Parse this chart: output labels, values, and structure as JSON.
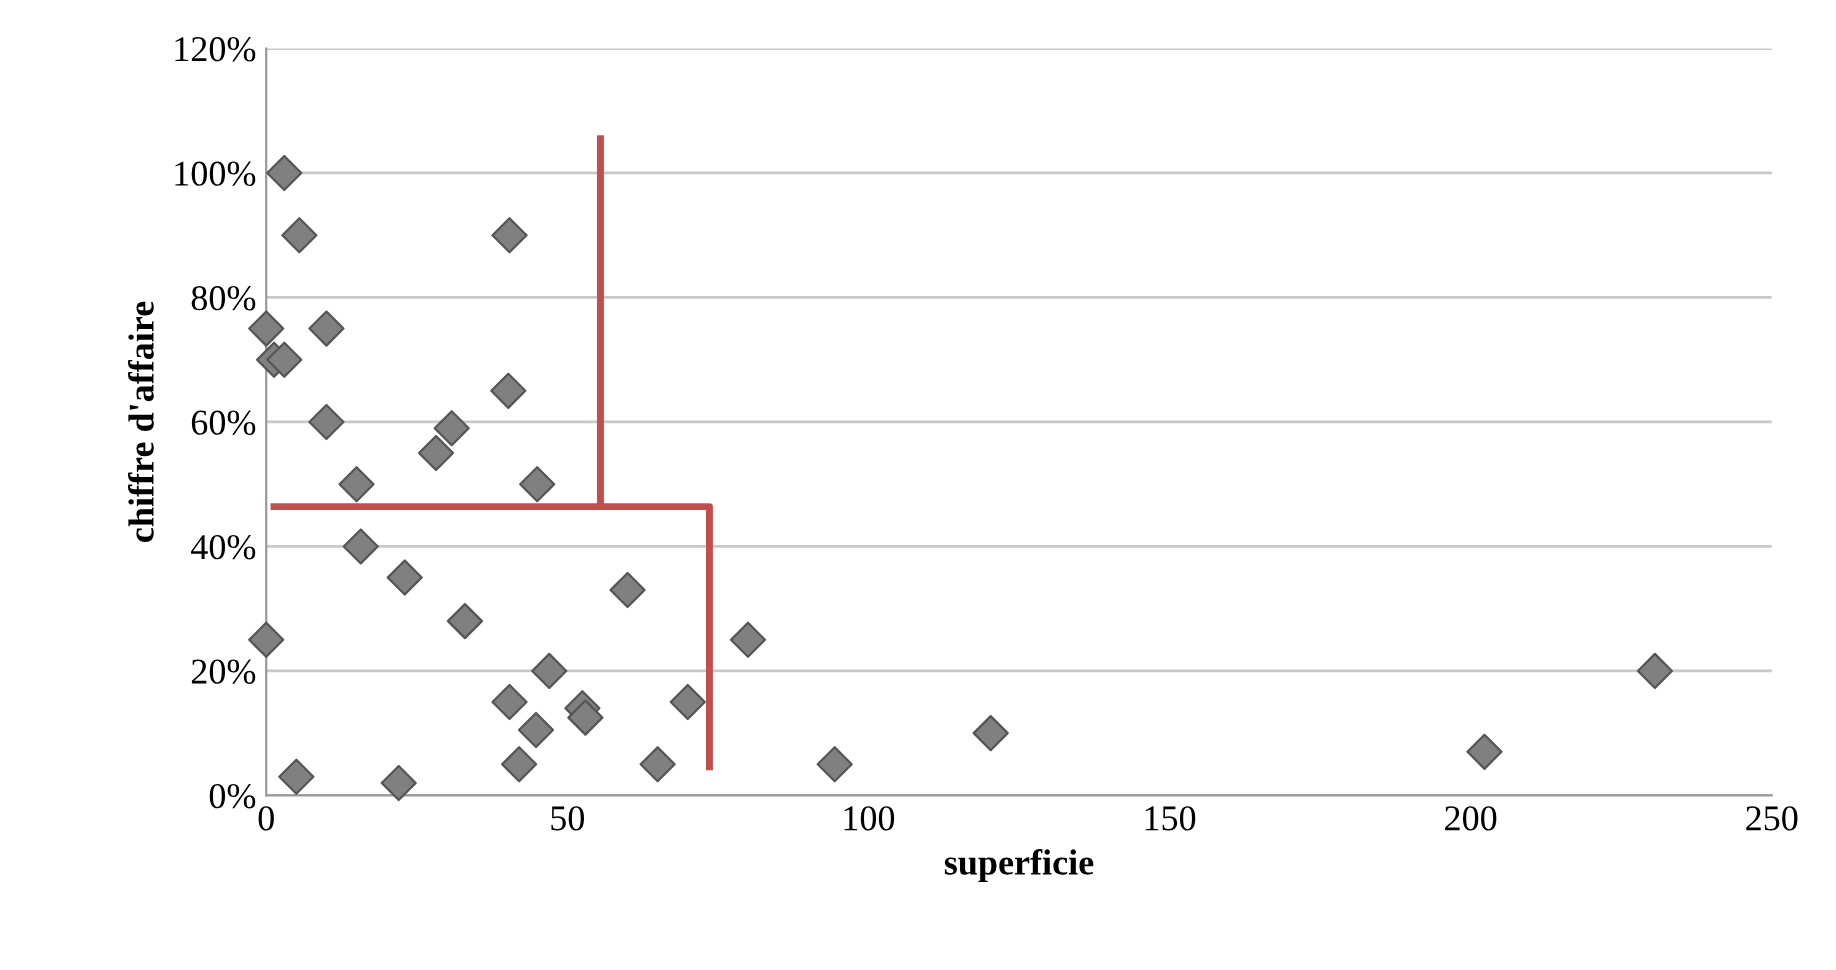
{
  "chart_data": {
    "type": "scatter",
    "xlabel": "superficie",
    "ylabel": "chiffre d'affaire",
    "xlim": [
      0,
      250
    ],
    "xticks": [
      0,
      50,
      100,
      150,
      200,
      250
    ],
    "ylim": [
      0,
      120
    ],
    "yticks": [
      {
        "value": 0,
        "label": "0%"
      },
      {
        "value": 20,
        "label": "20%"
      },
      {
        "value": 40,
        "label": "40%"
      },
      {
        "value": 60,
        "label": "60%"
      },
      {
        "value": 80,
        "label": "80%"
      },
      {
        "value": 100,
        "label": "100%"
      },
      {
        "value": 120,
        "label": "120%"
      }
    ],
    "grid": "y",
    "legend": false,
    "marker": "diamond",
    "series": [
      {
        "color": "#808080",
        "x": [
          3,
          5.5,
          40.4,
          0,
          10,
          1.3,
          3,
          40.2,
          10,
          30.8,
          28.2,
          15,
          45,
          15.7,
          23,
          33,
          0,
          47,
          40.4,
          44.8,
          42,
          5,
          22,
          52.5,
          53,
          60,
          80,
          70,
          65,
          94.4,
          120.3,
          202.3,
          230.6
        ],
        "values": [
          100,
          90,
          90,
          75,
          75,
          70,
          70,
          65,
          60,
          59,
          55,
          50,
          50,
          40,
          35,
          28,
          25,
          20,
          15,
          10.5,
          5,
          3,
          2,
          14,
          12.5,
          33,
          25,
          15,
          5,
          5,
          10,
          7,
          20
        ]
      },
      {
        "type": "line",
        "color": "#c0504d",
        "line_style": "solid",
        "marker": "none",
        "x": [
          1.3,
          73.6,
          73.6
        ],
        "values": [
          46.4,
          46.4,
          4.6
        ]
      },
      {
        "type": "line",
        "color": "#c0504d",
        "line_style": "solid",
        "marker": "none",
        "x": [
          55.5,
          55.5
        ],
        "values": [
          46.4,
          105.5
        ]
      }
    ]
  }
}
